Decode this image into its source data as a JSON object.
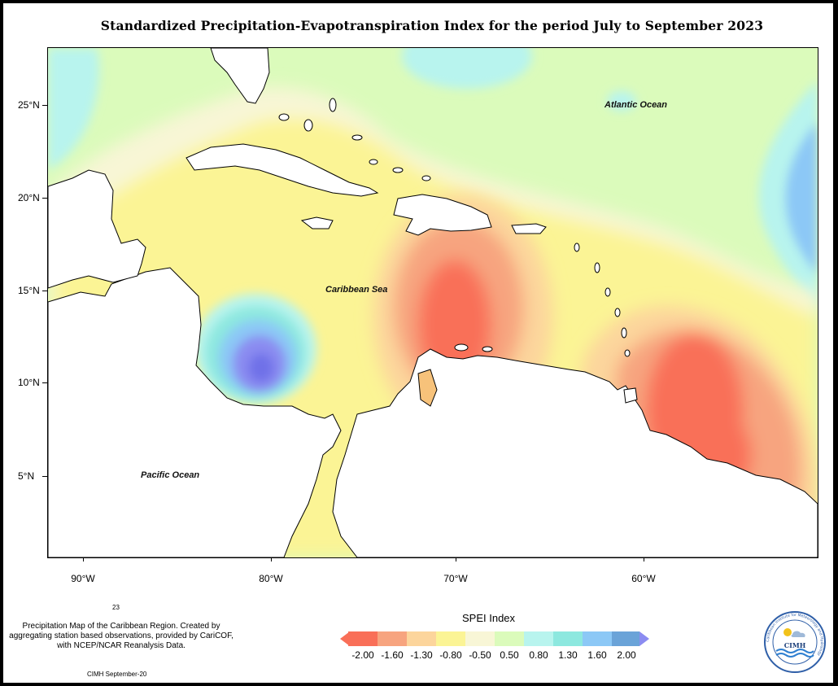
{
  "title": "Standardized Precipitation-Evapotranspiration Index for the period July to September 2023",
  "map": {
    "lat_labels": [
      "25°N",
      "20°N",
      "15°N",
      "10°N",
      "5°N"
    ],
    "lon_labels": [
      "90°W",
      "80°W",
      "70°W",
      "60°W"
    ],
    "ocean_labels": {
      "atlantic": "Atlantic Ocean",
      "caribbean": "Caribbean Sea",
      "pacific": "Pacific Ocean"
    },
    "colors": {
      "background": "#dbfbbb",
      "land": "#ffffff",
      "coast": "#000000"
    }
  },
  "legend": {
    "title": "SPEI Index",
    "ticks": [
      "-2.00",
      "-1.60",
      "-1.30",
      "-0.80",
      "-0.50",
      "0.50",
      "0.80",
      "1.30",
      "1.60",
      "2.00"
    ],
    "colors": [
      "#f96f58",
      "#f7a47f",
      "#fcd59c",
      "#fbf495",
      "#f8f6d6",
      "#dbfbbb",
      "#b8f4ee",
      "#8de8df",
      "#8cc8f6",
      "#6aa3d8",
      "#8b8cf1"
    ]
  },
  "footer": {
    "number": "23",
    "note": "Precipitation Map of the Caribbean Region. Created by aggregating station based observations, provided by CariCOF, with NCEP/NCAR Reanalysis Data.",
    "date": "CIMH September-20"
  },
  "logo": {
    "text": "CIMH",
    "ring_text": "Caribbean Institute for Meteorology and Hydrology"
  }
}
